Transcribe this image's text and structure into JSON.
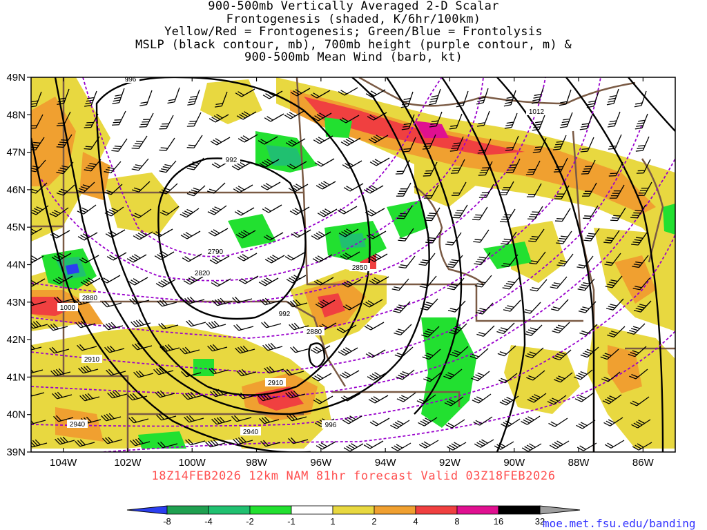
{
  "title_lines": [
    "900-500mb Vertically Averaged 2-D Scalar",
    "Frontogenesis (shaded, K/6hr/100km)",
    "Yellow/Red = Frontogenesis;  Green/Blue = Frontolysis",
    "MSLP (black contour, mb), 700mb height (purple contour, m) &",
    "900-500mb Mean Wind (barb, kt)"
  ],
  "map": {
    "lat_range": [
      39,
      49
    ],
    "lon_range": [
      -105,
      -85
    ],
    "lat_labels": [
      "39N",
      "40N",
      "41N",
      "42N",
      "43N",
      "44N",
      "45N",
      "46N",
      "47N",
      "48N",
      "49N"
    ],
    "lon_labels": [
      "104W",
      "102W",
      "100W",
      "98W",
      "96W",
      "94W",
      "92W",
      "90W",
      "88W",
      "86W"
    ],
    "mslp_labels": [
      "996",
      "992",
      "992",
      "1000",
      "1012",
      "996"
    ],
    "height_labels": [
      "2790",
      "2820",
      "2850",
      "2880",
      "2880",
      "2910",
      "2910",
      "2940",
      "2940"
    ],
    "colors": {
      "mslp_contour": "#000000",
      "height_contour": "#9900cc",
      "state_borders": "#7a5a44",
      "barbs": "#000000"
    }
  },
  "footer": "18Z14FEB2026 12km NAM 81hr forecast Valid 03Z18FEB2026",
  "colorbar": {
    "labels": [
      "-8",
      "-4",
      "-2",
      "-1",
      "1",
      "2",
      "4",
      "8",
      "16",
      "32"
    ],
    "colors": [
      "#2b3ff0",
      "#1fa050",
      "#20c070",
      "#22e030",
      "#ffffff",
      "#e8d840",
      "#f0a030",
      "#f04040",
      "#e01090",
      "#000000",
      "#9e9e9e"
    ]
  },
  "url": "moe.met.fsu.edu/banding"
}
